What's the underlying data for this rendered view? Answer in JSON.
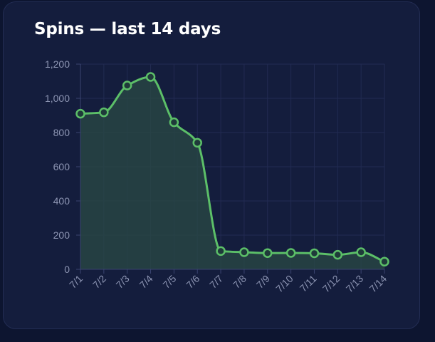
{
  "card": {
    "title": "Spins — last 14 days"
  },
  "colors": {
    "background": "#0d1530",
    "card": "#141d3d",
    "grid": "#222b52",
    "line": "#5cbf68",
    "fill": "#2a4a44",
    "tick": "#8d95b3",
    "title": "#ffffff"
  },
  "chart_data": {
    "type": "line",
    "title": "Spins — last 14 days",
    "xlabel": "",
    "ylabel": "",
    "categories": [
      "7/1",
      "7/2",
      "7/3",
      "7/4",
      "7/5",
      "7/6",
      "7/7",
      "7/8",
      "7/9",
      "7/10",
      "7/11",
      "7/12",
      "7/13",
      "7/14"
    ],
    "series": [
      {
        "values": [
          910,
          918,
          1075,
          1125,
          860,
          740,
          107,
          100,
          95,
          96,
          94,
          85,
          100,
          45
        ]
      }
    ],
    "ylim": [
      0,
      1200
    ],
    "yticks": [
      0,
      200,
      400,
      600,
      800,
      1000,
      1200
    ],
    "ytick_labels": [
      "0",
      "200",
      "400",
      "600",
      "800",
      "1,000",
      "1,200"
    ],
    "grid": true,
    "area_fill": true,
    "markers": "hollow-circle",
    "legend": "none"
  }
}
